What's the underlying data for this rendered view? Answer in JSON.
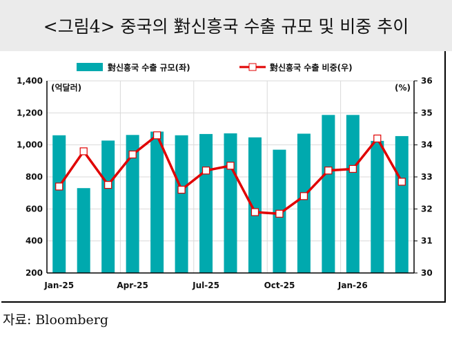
{
  "title": "<그림4> 중국의 對신흥국 수출 규모 및 비중 추이",
  "source": "자료: Bloomberg",
  "chart_data": {
    "type": "bar+line",
    "categories": [
      "Jan-25",
      "Feb-25",
      "Mar-25",
      "Apr-25",
      "May-25",
      "Jun-25",
      "Jul-25",
      "Aug-25",
      "Sep-25",
      "Oct-25",
      "Nov-25",
      "Dec-25",
      "Jan-26",
      "Feb-26",
      "Mar-26"
    ],
    "x_tick_labels": [
      "Jan-25",
      "Apr-25",
      "Jul-25",
      "Oct-25",
      "Jan-26"
    ],
    "series": [
      {
        "name": "對신흥국 수출 규모(좌)",
        "type": "bar",
        "axis": "left",
        "color": "#00A9AE",
        "values": [
          1060,
          730,
          1027,
          1062,
          1083,
          1060,
          1068,
          1072,
          1047,
          970,
          1070,
          1187,
          1187,
          1025,
          1055
        ]
      },
      {
        "name": "對신흥국 수출 비중(우)",
        "type": "line",
        "axis": "right",
        "color": "#E00000",
        "values": [
          32.7,
          33.8,
          32.75,
          33.7,
          34.3,
          32.6,
          33.2,
          33.35,
          31.9,
          31.85,
          32.4,
          33.2,
          33.25,
          34.2,
          32.85
        ]
      }
    ],
    "left_axis": {
      "unit": "(억달러)",
      "ylim": [
        200,
        1400
      ],
      "ticks": [
        "200",
        "400",
        "600",
        "800",
        "1,000",
        "1,200",
        "1,400"
      ]
    },
    "right_axis": {
      "unit": "(%)",
      "ylim": [
        30,
        36
      ],
      "ticks": [
        "30",
        "31",
        "32",
        "33",
        "34",
        "35",
        "36"
      ]
    },
    "legend_position": "top",
    "grid": true
  }
}
